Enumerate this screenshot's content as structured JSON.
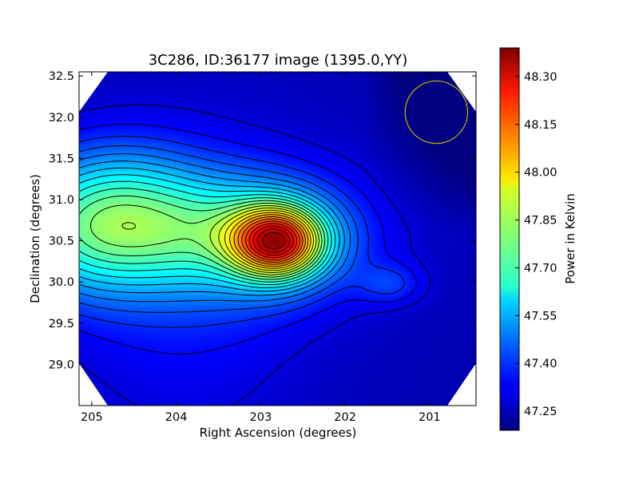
{
  "chart_data": {
    "type": "heatmap",
    "title": "3C286, ID:36177 image (1395.0,YY)",
    "xlabel": "Right Ascension (degrees)",
    "ylabel": "Declination (degrees)",
    "xlim": [
      205.15,
      200.45
    ],
    "ylim": [
      28.5,
      32.55
    ],
    "x_ticks": [
      {
        "value": 205,
        "label": "205"
      },
      {
        "value": 204,
        "label": "204"
      },
      {
        "value": 203,
        "label": "203"
      },
      {
        "value": 202,
        "label": "202"
      },
      {
        "value": 201,
        "label": "201"
      }
    ],
    "y_ticks": [
      {
        "value": 32.5,
        "label": "32.5"
      },
      {
        "value": 32.0,
        "label": "32.0"
      },
      {
        "value": 31.5,
        "label": "31.5"
      },
      {
        "value": 31.0,
        "label": "31.0"
      },
      {
        "value": 30.5,
        "label": "30.5"
      },
      {
        "value": 30.0,
        "label": "30.0"
      },
      {
        "value": 29.5,
        "label": "29.5"
      },
      {
        "value": 29.0,
        "label": "29.0"
      }
    ],
    "colorbar": {
      "label": "Power in Kelvin",
      "range": [
        47.19,
        48.39
      ],
      "ticks": [
        {
          "value": 48.3,
          "label": "48.30"
        },
        {
          "value": 48.15,
          "label": "48.15"
        },
        {
          "value": 48.0,
          "label": "48.00"
        },
        {
          "value": 47.85,
          "label": "47.85"
        },
        {
          "value": 47.7,
          "label": "47.70"
        },
        {
          "value": 47.55,
          "label": "47.55"
        },
        {
          "value": 47.4,
          "label": "47.40"
        },
        {
          "value": 47.25,
          "label": "47.25"
        }
      ],
      "colormap": "jet"
    },
    "peak": {
      "ra": 202.8,
      "dec": 30.49,
      "value": 48.35
    },
    "beam_circle": {
      "ra": 200.92,
      "dec": 32.06,
      "radius_deg": 0.37,
      "color": "#c8b400"
    },
    "field_shape": "octagon",
    "contours": "black contour lines of power level"
  }
}
